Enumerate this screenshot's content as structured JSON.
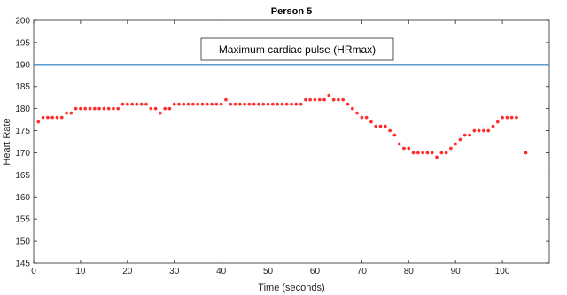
{
  "chart_data": {
    "type": "scatter",
    "title": "Person 5",
    "xlabel": "Time (seconds)",
    "ylabel": "Heart Rate",
    "xlim": [
      0,
      110
    ],
    "ylim": [
      145,
      200
    ],
    "xticks": [
      0,
      10,
      20,
      30,
      40,
      50,
      60,
      70,
      80,
      90,
      100
    ],
    "yticks": [
      145,
      150,
      155,
      160,
      165,
      170,
      175,
      180,
      185,
      190,
      195,
      200
    ],
    "grid": false,
    "annotation": "Maximum cardiac pulse (HRmax)",
    "reference_line": {
      "name": "HRmax",
      "y": 190,
      "color": "#4a90c8"
    },
    "marker_color": "#ff2a2a",
    "series": [
      {
        "x": [
          1,
          2,
          3,
          4,
          5,
          6,
          7,
          8,
          9,
          10,
          11,
          12,
          13,
          14,
          15,
          16,
          17,
          18,
          19,
          20,
          21,
          22,
          23,
          24,
          25,
          26,
          27,
          28,
          29,
          30,
          31,
          32,
          33,
          34,
          35,
          36,
          37,
          38,
          39,
          40,
          41,
          42,
          43,
          44,
          45,
          46,
          47,
          48,
          49,
          50,
          51,
          52,
          53,
          54,
          55,
          56,
          57,
          58,
          59,
          60,
          61,
          62,
          63,
          64,
          65,
          66,
          67,
          68,
          69,
          70,
          71,
          72,
          73,
          74,
          75,
          76,
          77,
          78,
          79,
          80,
          81,
          82,
          83,
          84,
          85,
          86,
          87,
          88,
          89,
          90,
          91,
          92,
          93,
          94,
          95,
          96,
          97,
          98,
          99,
          100,
          101,
          102,
          103,
          104,
          105
        ],
        "y": [
          177,
          178,
          178,
          178,
          178,
          178,
          179,
          179,
          180,
          180,
          180,
          180,
          180,
          180,
          180,
          180,
          180,
          180,
          181,
          181,
          181,
          181,
          181,
          181,
          180,
          180,
          179,
          180,
          180,
          181,
          181,
          181,
          181,
          181,
          181,
          181,
          181,
          181,
          181,
          181,
          182,
          181,
          181,
          181,
          181,
          181,
          181,
          181,
          181,
          181,
          181,
          181,
          181,
          181,
          181,
          181,
          181,
          182,
          182,
          182,
          182,
          182,
          183,
          182,
          182,
          182,
          181,
          180,
          179,
          178,
          178,
          177,
          176,
          176,
          176,
          175,
          174,
          172,
          171,
          171,
          170,
          170,
          170,
          170,
          170,
          169,
          170,
          170,
          171,
          172,
          173,
          174,
          174,
          175,
          175,
          175,
          175,
          176,
          177,
          178,
          178,
          178,
          178,
          null,
          170
        ]
      }
    ]
  }
}
